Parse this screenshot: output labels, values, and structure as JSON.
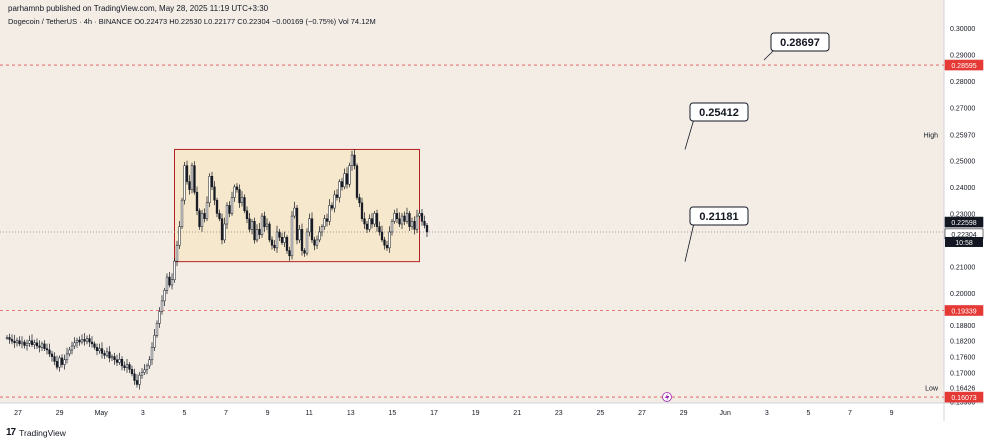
{
  "header": {
    "published": "parhamnb published on TradingView.com, May 28, 2025 11:19 UTC+3:30",
    "symbol": "Dogecoin / TetherUS · 4h · BINANCE",
    "open_label": "O",
    "open": "0.22473",
    "high_label": "H",
    "high": "0.22530",
    "low_label": "L",
    "low": "0.22177",
    "close_label": "C",
    "close": "0.22304",
    "change": "−0.00169 (−0.75%)",
    "vol_label": "Vol",
    "vol": "74.12M"
  },
  "footer": {
    "brand": "TradingView",
    "logo": "17"
  },
  "colors": {
    "background": "#f3ede6",
    "up": "#131722",
    "down": "#131722",
    "range_fill": "#f7e6c4",
    "range_border": "#b22222",
    "dashed": "#e05555",
    "badge_red": "#e53935"
  },
  "chart_data": {
    "type": "candlestick",
    "title": "Dogecoin / TetherUS · 4h · BINANCE",
    "ylim": [
      0.1585,
      0.3052
    ],
    "x_ticks": [
      "27",
      "29",
      "May",
      "3",
      "5",
      "7",
      "9",
      "11",
      "13",
      "15",
      "17",
      "19",
      "21",
      "23",
      "25",
      "27",
      "29",
      "Jun",
      "3",
      "5",
      "7",
      "9"
    ],
    "y_ticks": [
      "0.30000",
      "0.29000",
      "0.28000",
      "0.27000",
      "0.25000",
      "0.24000",
      "0.23000",
      "0.21000",
      "0.20000",
      "0.18800",
      "0.18200",
      "0.17600",
      "0.17000",
      "0.15900"
    ],
    "price_badges": [
      {
        "value": "0.28595",
        "kind": "red"
      },
      {
        "value": "0.22598",
        "kind": "dark"
      },
      {
        "value": "0.22304",
        "kind": "white"
      },
      {
        "value": "0.19339",
        "kind": "red"
      },
      {
        "value": "0.16073",
        "kind": "red"
      }
    ],
    "countdown": "10:58",
    "high_marker": {
      "label": "High",
      "value": "0.25970"
    },
    "low_marker": {
      "label": "Low",
      "value": "0.16426"
    },
    "horizontal_levels": [
      0.28595,
      0.19339,
      0.16073
    ],
    "range_box": {
      "top": 0.25412,
      "bottom": 0.21181,
      "start_index": 67,
      "end_index": 165
    },
    "callouts": [
      "0.28697",
      "0.25412",
      "0.21181"
    ],
    "series_close": [
      0.1832,
      0.1825,
      0.1818,
      0.1812,
      0.182,
      0.1808,
      0.1815,
      0.1802,
      0.181,
      0.182,
      0.1805,
      0.1812,
      0.18,
      0.1795,
      0.1808,
      0.179,
      0.1785,
      0.177,
      0.176,
      0.1742,
      0.172,
      0.1755,
      0.173,
      0.1748,
      0.177,
      0.1785,
      0.18,
      0.1812,
      0.1822,
      0.1815,
      0.1825,
      0.1818,
      0.1828,
      0.1815,
      0.1808,
      0.1795,
      0.1782,
      0.179,
      0.1772,
      0.1765,
      0.1778,
      0.1755,
      0.176,
      0.1748,
      0.1738,
      0.175,
      0.1725,
      0.1718,
      0.173,
      0.1712,
      0.1695,
      0.167,
      0.1655,
      0.169,
      0.17,
      0.171,
      0.1725,
      0.1748,
      0.1795,
      0.184,
      0.1885,
      0.193,
      0.197,
      0.201,
      0.206,
      0.203,
      0.205,
      0.212,
      0.218,
      0.225,
      0.235,
      0.248,
      0.242,
      0.239,
      0.248,
      0.238,
      0.231,
      0.225,
      0.23,
      0.228,
      0.234,
      0.244,
      0.24,
      0.235,
      0.23,
      0.228,
      0.22,
      0.226,
      0.233,
      0.23,
      0.236,
      0.24,
      0.239,
      0.234,
      0.236,
      0.231,
      0.228,
      0.224,
      0.227,
      0.22,
      0.224,
      0.222,
      0.229,
      0.225,
      0.226,
      0.22,
      0.218,
      0.217,
      0.223,
      0.221,
      0.219,
      0.221,
      0.216,
      0.214,
      0.229,
      0.232,
      0.22,
      0.224,
      0.216,
      0.215,
      0.223,
      0.228,
      0.22,
      0.218,
      0.22,
      0.223,
      0.225,
      0.228,
      0.227,
      0.233,
      0.232,
      0.237,
      0.236,
      0.242,
      0.24,
      0.245,
      0.241,
      0.248,
      0.252,
      0.248,
      0.236,
      0.234,
      0.228,
      0.226,
      0.224,
      0.228,
      0.226,
      0.23,
      0.225,
      0.223,
      0.22,
      0.218,
      0.217,
      0.223,
      0.227,
      0.23,
      0.228,
      0.226,
      0.229,
      0.227,
      0.23,
      0.225,
      0.227,
      0.224,
      0.229,
      0.23,
      0.227,
      0.2255,
      0.223
    ]
  }
}
